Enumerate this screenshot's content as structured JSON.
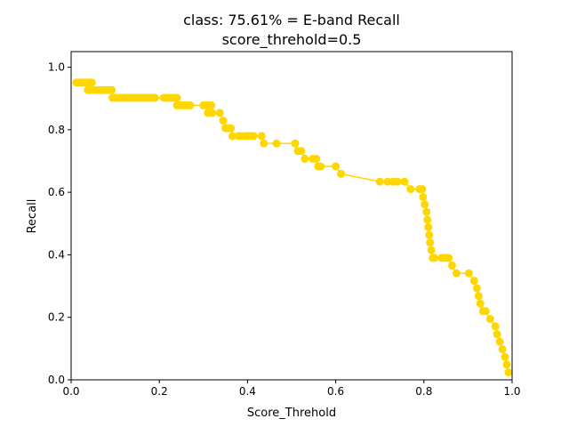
{
  "chart_data": {
    "type": "line",
    "title_line1": "class: 75.61% = E-band Recall",
    "title_line2": "score_threhold=0.5",
    "xlabel": "Score_Threhold",
    "ylabel": "Recall",
    "xlim": [
      0.0,
      1.0
    ],
    "ylim": [
      0.0,
      1.05
    ],
    "xticks": [
      "0.0",
      "0.2",
      "0.4",
      "0.6",
      "0.8",
      "1.0"
    ],
    "yticks": [
      "0.0",
      "0.2",
      "0.4",
      "0.6",
      "0.8",
      "1.0"
    ],
    "grid": false,
    "series_color": "#ffd700",
    "x": [
      0.012,
      0.018,
      0.025,
      0.03,
      0.036,
      0.042,
      0.047,
      0.038,
      0.044,
      0.05,
      0.056,
      0.062,
      0.068,
      0.074,
      0.08,
      0.086,
      0.092,
      0.094,
      0.1,
      0.106,
      0.112,
      0.118,
      0.124,
      0.13,
      0.136,
      0.142,
      0.148,
      0.154,
      0.16,
      0.166,
      0.172,
      0.178,
      0.184,
      0.19,
      0.21,
      0.216,
      0.222,
      0.228,
      0.234,
      0.24,
      0.24,
      0.246,
      0.252,
      0.258,
      0.264,
      0.27,
      0.3,
      0.306,
      0.312,
      0.318,
      0.31,
      0.32,
      0.337,
      0.345,
      0.35,
      0.356,
      0.362,
      0.366,
      0.38,
      0.386,
      0.396,
      0.402,
      0.408,
      0.414,
      0.432,
      0.437,
      0.466,
      0.508,
      0.514,
      0.522,
      0.53,
      0.548,
      0.556,
      0.56,
      0.566,
      0.6,
      0.612,
      0.7,
      0.718,
      0.73,
      0.74,
      0.756,
      0.77,
      0.79,
      0.796,
      0.798,
      0.802,
      0.806,
      0.808,
      0.81,
      0.812,
      0.814,
      0.817,
      0.82,
      0.824,
      0.84,
      0.848,
      0.856,
      0.864,
      0.874,
      0.902,
      0.914,
      0.92,
      0.924,
      0.928,
      0.934,
      0.94,
      0.95,
      0.962,
      0.966,
      0.972,
      0.978,
      0.984,
      0.988,
      0.992
    ],
    "y": [
      0.951,
      0.951,
      0.951,
      0.951,
      0.951,
      0.951,
      0.951,
      0.927,
      0.927,
      0.927,
      0.927,
      0.927,
      0.927,
      0.927,
      0.927,
      0.927,
      0.927,
      0.902,
      0.902,
      0.902,
      0.902,
      0.902,
      0.902,
      0.902,
      0.902,
      0.902,
      0.902,
      0.902,
      0.902,
      0.902,
      0.902,
      0.902,
      0.902,
      0.902,
      0.902,
      0.902,
      0.902,
      0.902,
      0.902,
      0.902,
      0.878,
      0.878,
      0.878,
      0.878,
      0.878,
      0.878,
      0.878,
      0.878,
      0.878,
      0.878,
      0.854,
      0.854,
      0.854,
      0.829,
      0.805,
      0.805,
      0.805,
      0.78,
      0.78,
      0.78,
      0.78,
      0.78,
      0.78,
      0.78,
      0.78,
      0.756,
      0.756,
      0.756,
      0.732,
      0.732,
      0.707,
      0.707,
      0.707,
      0.683,
      0.683,
      0.683,
      0.659,
      0.634,
      0.634,
      0.634,
      0.634,
      0.634,
      0.61,
      0.61,
      0.61,
      0.585,
      0.561,
      0.537,
      0.512,
      0.488,
      0.463,
      0.439,
      0.415,
      0.39,
      0.39,
      0.39,
      0.39,
      0.39,
      0.366,
      0.341,
      0.341,
      0.317,
      0.293,
      0.268,
      0.244,
      0.22,
      0.22,
      0.195,
      0.171,
      0.146,
      0.122,
      0.098,
      0.073,
      0.049,
      0.024
    ]
  }
}
